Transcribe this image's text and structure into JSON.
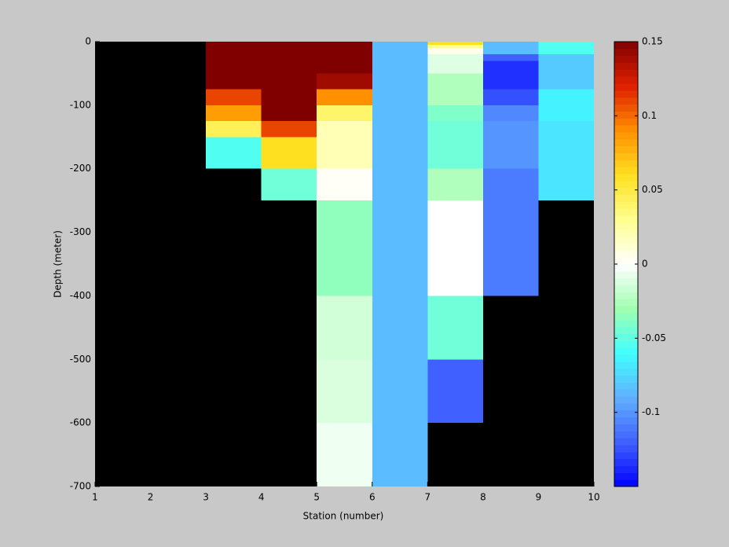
{
  "chart_data": {
    "type": "heatmap",
    "x_label": "Station (number)",
    "y_label": "Depth (meter)",
    "x_edges": [
      1,
      2,
      3,
      4,
      5,
      6,
      7,
      8,
      9,
      10
    ],
    "y_edges": [
      0,
      -5,
      -10,
      -20,
      -30,
      -50,
      -75,
      -100,
      -125,
      -150,
      -200,
      -250,
      -300,
      -400,
      -500,
      -600,
      -700
    ],
    "values": [
      [
        null,
        null,
        0.15,
        0.15,
        0.15,
        -0.085,
        0.06,
        -0.085,
        -0.055
      ],
      [
        null,
        null,
        0.15,
        0.15,
        0.15,
        -0.085,
        0.03,
        -0.085,
        -0.055
      ],
      [
        null,
        null,
        0.15,
        0.15,
        0.15,
        -0.085,
        0.005,
        -0.085,
        -0.055
      ],
      [
        null,
        null,
        0.15,
        0.15,
        0.15,
        -0.085,
        -0.01,
        -0.12,
        -0.08
      ],
      [
        null,
        null,
        0.15,
        0.15,
        0.15,
        -0.085,
        -0.01,
        -0.135,
        -0.08
      ],
      [
        null,
        null,
        0.15,
        0.15,
        0.14,
        -0.085,
        -0.025,
        -0.135,
        -0.08
      ],
      [
        null,
        null,
        0.11,
        0.15,
        0.09,
        -0.085,
        -0.025,
        -0.125,
        -0.065
      ],
      [
        null,
        null,
        0.085,
        0.15,
        0.04,
        -0.085,
        -0.04,
        -0.105,
        -0.065
      ],
      [
        null,
        null,
        0.045,
        0.11,
        0.02,
        -0.085,
        -0.045,
        -0.1,
        -0.07
      ],
      [
        null,
        null,
        -0.055,
        0.06,
        0.02,
        -0.085,
        -0.045,
        -0.1,
        -0.07
      ],
      [
        null,
        null,
        null,
        -0.045,
        0.002,
        -0.085,
        -0.025,
        -0.11,
        -0.07
      ],
      [
        null,
        null,
        null,
        null,
        -0.035,
        -0.085,
        0,
        -0.11,
        null
      ],
      [
        null,
        null,
        null,
        null,
        -0.035,
        -0.085,
        0,
        -0.11,
        null
      ],
      [
        null,
        null,
        null,
        null,
        -0.015,
        -0.085,
        -0.045,
        null,
        null
      ],
      [
        null,
        null,
        null,
        null,
        -0.012,
        -0.085,
        -0.12,
        null,
        null
      ],
      [
        null,
        null,
        null,
        null,
        -0.005,
        -0.085,
        null,
        null,
        null
      ]
    ],
    "missing_color": "#000000",
    "colormap": [
      "#0000ff",
      "#4060ff",
      "#60b0ff",
      "#40ffff",
      "#a0ffb0",
      "#ffffff",
      "#ffff90",
      "#ffe020",
      "#ff9000",
      "#e02000",
      "#800000"
    ],
    "clim": [
      -0.15,
      0.15
    ],
    "cticks": [
      0.15,
      0.1,
      0.05,
      0,
      -0.05,
      -0.1
    ],
    "xlim": [
      1,
      10
    ],
    "xticks": [
      1,
      2,
      3,
      4,
      5,
      6,
      7,
      8,
      9,
      10
    ],
    "ylim": [
      -700,
      0
    ],
    "yticks": [
      0,
      -100,
      -200,
      -300,
      -400,
      -500,
      -600,
      -700
    ]
  }
}
